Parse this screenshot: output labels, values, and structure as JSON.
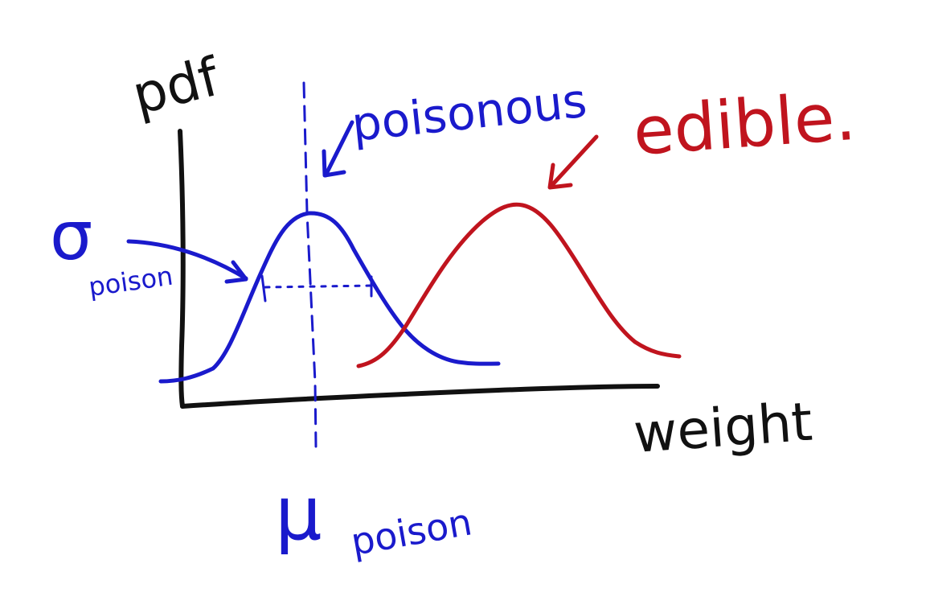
{
  "labels": {
    "y_axis": "pdf",
    "x_axis": "weight",
    "poisonous": "poisonous",
    "edible": "edible.",
    "sigma_symbol": "σ",
    "sigma_subscript": "poison",
    "mu_symbol": "μ",
    "mu_subscript": "poison"
  },
  "colors": {
    "axes": "#111111",
    "poisonous": "#1a1acc",
    "edible": "#c0141e",
    "background": "#ffffff"
  },
  "distributions": [
    {
      "name": "poisonous",
      "color_key": "poisonous"
    },
    {
      "name": "edible",
      "color_key": "edible"
    }
  ]
}
